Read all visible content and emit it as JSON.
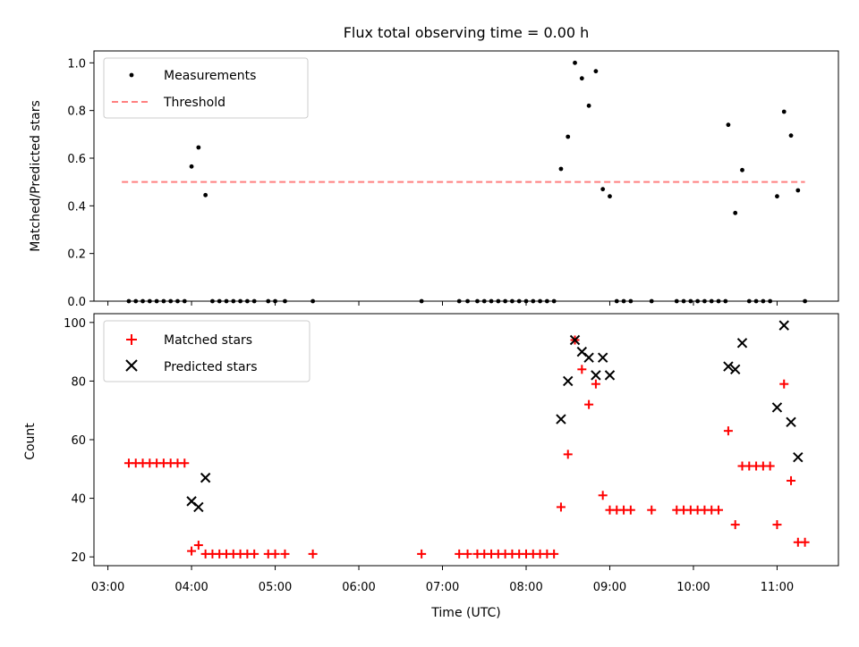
{
  "title": "Flux total observing time = 0.00 h",
  "colors": {
    "measurement": "#000000",
    "threshold": "#ff7f7f",
    "matched": "#ff0000",
    "predicted": "#000000"
  },
  "chart_data": [
    {
      "type": "scatter",
      "ylabel": "Matched/Predicted stars",
      "xlim": [
        "02:50",
        "11:44"
      ],
      "ylim": [
        0,
        1.05
      ],
      "yticks": [
        "0.0",
        "0.2",
        "0.4",
        "0.6",
        "0.8",
        "1.0"
      ],
      "legend": {
        "position": "top-left",
        "entries": [
          "Measurements",
          "Threshold"
        ]
      },
      "threshold": {
        "name": "Threshold",
        "value": 0.5,
        "x_range": [
          "03:10",
          "11:20"
        ]
      },
      "series": [
        {
          "name": "Measurements",
          "points": [
            [
              "03:15",
              0
            ],
            [
              "03:20",
              0
            ],
            [
              "03:25",
              0
            ],
            [
              "03:30",
              0
            ],
            [
              "03:35",
              0
            ],
            [
              "03:40",
              0
            ],
            [
              "03:45",
              0
            ],
            [
              "03:50",
              0
            ],
            [
              "03:55",
              0
            ],
            [
              "04:00",
              0.565
            ],
            [
              "04:05",
              0.645
            ],
            [
              "04:10",
              0.445
            ],
            [
              "04:15",
              0
            ],
            [
              "04:20",
              0
            ],
            [
              "04:25",
              0
            ],
            [
              "04:30",
              0
            ],
            [
              "04:35",
              0
            ],
            [
              "04:40",
              0
            ],
            [
              "04:45",
              0
            ],
            [
              "04:55",
              0
            ],
            [
              "05:00",
              0
            ],
            [
              "05:07",
              0
            ],
            [
              "05:27",
              0
            ],
            [
              "06:45",
              0
            ],
            [
              "07:12",
              0
            ],
            [
              "07:18",
              0
            ],
            [
              "07:25",
              0
            ],
            [
              "07:30",
              0
            ],
            [
              "07:35",
              0
            ],
            [
              "07:40",
              0
            ],
            [
              "07:45",
              0
            ],
            [
              "07:50",
              0
            ],
            [
              "07:55",
              0
            ],
            [
              "08:00",
              0
            ],
            [
              "08:05",
              0
            ],
            [
              "08:10",
              0
            ],
            [
              "08:15",
              0
            ],
            [
              "08:20",
              0
            ],
            [
              "08:25",
              0.555
            ],
            [
              "08:30",
              0.69
            ],
            [
              "08:35",
              1.0
            ],
            [
              "08:40",
              0.935
            ],
            [
              "08:45",
              0.82
            ],
            [
              "08:50",
              0.965
            ],
            [
              "08:55",
              0.47
            ],
            [
              "09:00",
              0.44
            ],
            [
              "09:05",
              0
            ],
            [
              "09:10",
              0
            ],
            [
              "09:15",
              0
            ],
            [
              "09:30",
              0
            ],
            [
              "09:48",
              0
            ],
            [
              "09:53",
              0
            ],
            [
              "09:58",
              0
            ],
            [
              "10:03",
              0
            ],
            [
              "10:08",
              0
            ],
            [
              "10:13",
              0
            ],
            [
              "10:18",
              0
            ],
            [
              "10:23",
              0
            ],
            [
              "10:25",
              0.74
            ],
            [
              "10:30",
              0.37
            ],
            [
              "10:35",
              0.55
            ],
            [
              "10:40",
              0
            ],
            [
              "10:45",
              0
            ],
            [
              "10:50",
              0
            ],
            [
              "10:55",
              0
            ],
            [
              "11:00",
              0.44
            ],
            [
              "11:05",
              0.795
            ],
            [
              "11:10",
              0.695
            ],
            [
              "11:15",
              0.465
            ],
            [
              "11:20",
              0
            ]
          ]
        }
      ]
    },
    {
      "type": "scatter",
      "xlabel": "Time (UTC)",
      "ylabel": "Count",
      "xlim": [
        "02:50",
        "11:44"
      ],
      "ylim": [
        17,
        103
      ],
      "xticks": [
        "03:00",
        "04:00",
        "05:00",
        "06:00",
        "07:00",
        "08:00",
        "09:00",
        "10:00",
        "11:00"
      ],
      "yticks": [
        "20",
        "40",
        "60",
        "80",
        "100"
      ],
      "legend": {
        "position": "top-left",
        "entries": [
          "Matched stars",
          "Predicted stars"
        ]
      },
      "series": [
        {
          "name": "Matched stars",
          "marker": "plus",
          "points": [
            [
              "03:15",
              52
            ],
            [
              "03:20",
              52
            ],
            [
              "03:25",
              52
            ],
            [
              "03:30",
              52
            ],
            [
              "03:35",
              52
            ],
            [
              "03:40",
              52
            ],
            [
              "03:45",
              52
            ],
            [
              "03:50",
              52
            ],
            [
              "03:55",
              52
            ],
            [
              "04:00",
              22
            ],
            [
              "04:05",
              24
            ],
            [
              "04:10",
              21
            ],
            [
              "04:15",
              21
            ],
            [
              "04:20",
              21
            ],
            [
              "04:25",
              21
            ],
            [
              "04:30",
              21
            ],
            [
              "04:35",
              21
            ],
            [
              "04:40",
              21
            ],
            [
              "04:45",
              21
            ],
            [
              "04:55",
              21
            ],
            [
              "05:00",
              21
            ],
            [
              "05:07",
              21
            ],
            [
              "05:27",
              21
            ],
            [
              "06:45",
              21
            ],
            [
              "07:12",
              21
            ],
            [
              "07:18",
              21
            ],
            [
              "07:25",
              21
            ],
            [
              "07:30",
              21
            ],
            [
              "07:35",
              21
            ],
            [
              "07:40",
              21
            ],
            [
              "07:45",
              21
            ],
            [
              "07:50",
              21
            ],
            [
              "07:55",
              21
            ],
            [
              "08:00",
              21
            ],
            [
              "08:05",
              21
            ],
            [
              "08:10",
              21
            ],
            [
              "08:15",
              21
            ],
            [
              "08:20",
              21
            ],
            [
              "08:25",
              37
            ],
            [
              "08:30",
              55
            ],
            [
              "08:35",
              94
            ],
            [
              "08:40",
              84
            ],
            [
              "08:45",
              72
            ],
            [
              "08:50",
              79
            ],
            [
              "08:55",
              41
            ],
            [
              "09:00",
              36
            ],
            [
              "09:05",
              36
            ],
            [
              "09:10",
              36
            ],
            [
              "09:15",
              36
            ],
            [
              "09:30",
              36
            ],
            [
              "09:48",
              36
            ],
            [
              "09:53",
              36
            ],
            [
              "09:58",
              36
            ],
            [
              "10:03",
              36
            ],
            [
              "10:08",
              36
            ],
            [
              "10:13",
              36
            ],
            [
              "10:18",
              36
            ],
            [
              "10:25",
              63
            ],
            [
              "10:30",
              31
            ],
            [
              "10:35",
              51
            ],
            [
              "10:40",
              51
            ],
            [
              "10:45",
              51
            ],
            [
              "10:50",
              51
            ],
            [
              "10:55",
              51
            ],
            [
              "11:00",
              31
            ],
            [
              "11:05",
              79
            ],
            [
              "11:10",
              46
            ],
            [
              "11:15",
              25
            ],
            [
              "11:20",
              25
            ]
          ]
        },
        {
          "name": "Predicted stars",
          "marker": "x",
          "points": [
            [
              "04:00",
              39
            ],
            [
              "04:05",
              37
            ],
            [
              "04:10",
              47
            ],
            [
              "08:25",
              67
            ],
            [
              "08:30",
              80
            ],
            [
              "08:35",
              94
            ],
            [
              "08:40",
              90
            ],
            [
              "08:45",
              88
            ],
            [
              "08:50",
              82
            ],
            [
              "08:55",
              88
            ],
            [
              "09:00",
              82
            ],
            [
              "10:25",
              85
            ],
            [
              "10:30",
              84
            ],
            [
              "10:35",
              93
            ],
            [
              "11:00",
              71
            ],
            [
              "11:05",
              99
            ],
            [
              "11:10",
              66
            ],
            [
              "11:15",
              54
            ]
          ]
        }
      ]
    }
  ]
}
